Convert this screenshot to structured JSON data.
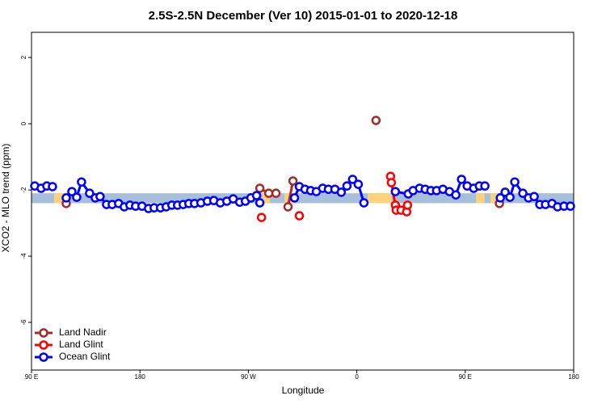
{
  "chart_data": {
    "type": "line",
    "title": "2.5S-2.5N December (Ver 10)   2015-01-01 to 2020-12-18",
    "x_label": "Longitude",
    "y_label": "XCO2 - MLO trend (ppm)",
    "xlim": [
      90,
      540
    ],
    "ylim": [
      -7.44,
      2.76
    ],
    "xticks": [
      {
        "value": 90,
        "label": "90 E"
      },
      180,
      {
        "value": 270,
        "label": "90 W"
      },
      {
        "value": 360,
        "label": "0"
      },
      {
        "value": 450,
        "label": "90 E"
      },
      {
        "value": 540,
        "label": "180"
      }
    ],
    "yticks": [
      2,
      0,
      -2,
      -4,
      -6
    ],
    "legend": "bottom-left",
    "band": {
      "ylim": [
        -2.4,
        -2.1
      ],
      "color": "#a8bfdc",
      "land_color": "#fdd27a",
      "land_spans": [
        [
          108.8,
          117.5
        ],
        [
          281.5,
          288.0
        ],
        [
          300.0,
          307.0
        ],
        [
          369.0,
          389.0
        ],
        [
          459.0,
          466.0
        ],
        [
          471.0,
          477.0
        ]
      ]
    },
    "series": [
      {
        "name": "Land Nadir",
        "color": "#a52a2a",
        "x": [
          118.8,
          null,
          279.5,
          286.9,
          292.9,
          null,
          302.9,
          307.0,
          null,
          375.9,
          null,
          478.4
        ],
        "values": [
          -2.41,
          null,
          -1.95,
          -2.1,
          -2.1,
          null,
          -2.51,
          -1.73,
          null,
          0.1,
          null,
          -2.41
        ]
      },
      {
        "name": "Land Glint",
        "color": "#ff0000",
        "x": [
          280.9,
          null,
          312.3,
          null,
          388.0,
          388.7,
          392.0,
          392.7,
          396.7,
          401.4,
          402.1
        ],
        "values": [
          -2.83,
          null,
          -2.78,
          null,
          -1.59,
          -1.78,
          -2.46,
          -2.61,
          -2.61,
          -2.66,
          -2.46
        ]
      },
      {
        "name": "Ocean Glint",
        "color": "#0000ff",
        "x": [
          92.7,
          98.0,
          102.7,
          107.4,
          null,
          118.8,
          123.5,
          127.5,
          131.5,
          138.2,
          142.9,
          146.9,
          152.3,
          157.0,
          162.3,
          167.0,
          171.7,
          176.4,
          181.7,
          187.1,
          191.8,
          197.1,
          201.8,
          206.5,
          211.2,
          215.9,
          220.6,
          225.3,
          230.6,
          236.0,
          241.3,
          246.7,
          252.1,
          257.4,
          262.8,
          267.5,
          272.1,
          276.8,
          279.5,
          null,
          308.3,
          312.3,
          317.0,
          321.7,
          326.4,
          331.7,
          336.4,
          341.8,
          347.1,
          351.8,
          356.5,
          361.2,
          365.9,
          null,
          392.0,
          402.7,
          406.7,
          412.1,
          416.8,
          421.5,
          426.2,
          431.5,
          436.9,
          442.2,
          446.9,
          451.6,
          457.0,
          461.7,
          466.3,
          null,
          479.1,
          483.1,
          487.1,
          491.1,
          497.8,
          502.5,
          507.2,
          511.9,
          516.6,
          522.0,
          526.6,
          532.0,
          537.3
        ],
        "values": [
          -1.88,
          -1.95,
          -1.88,
          -1.9,
          null,
          -2.24,
          -2.05,
          -2.22,
          -1.76,
          -2.1,
          -2.24,
          -2.2,
          -2.44,
          -2.44,
          -2.41,
          -2.51,
          -2.46,
          -2.49,
          -2.49,
          -2.56,
          -2.54,
          -2.54,
          -2.51,
          -2.46,
          -2.46,
          -2.44,
          -2.41,
          -2.41,
          -2.39,
          -2.34,
          -2.32,
          -2.39,
          -2.34,
          -2.27,
          -2.37,
          -2.34,
          -2.24,
          -2.17,
          -2.39,
          null,
          -2.24,
          -1.9,
          -1.98,
          -2.02,
          -2.05,
          -1.95,
          -1.98,
          -1.98,
          -2.07,
          -1.88,
          -1.68,
          -1.83,
          -2.39,
          null,
          -2.05,
          -2.12,
          -2.02,
          -1.95,
          -1.98,
          -2.02,
          -2.02,
          -1.98,
          -2.05,
          -2.15,
          -1.68,
          -1.88,
          -1.95,
          -1.88,
          -1.88,
          null,
          -2.24,
          -2.07,
          -2.22,
          -1.76,
          -2.1,
          -2.24,
          -2.2,
          -2.44,
          -2.44,
          -2.41,
          -2.51,
          -2.49,
          -2.49
        ]
      }
    ]
  }
}
